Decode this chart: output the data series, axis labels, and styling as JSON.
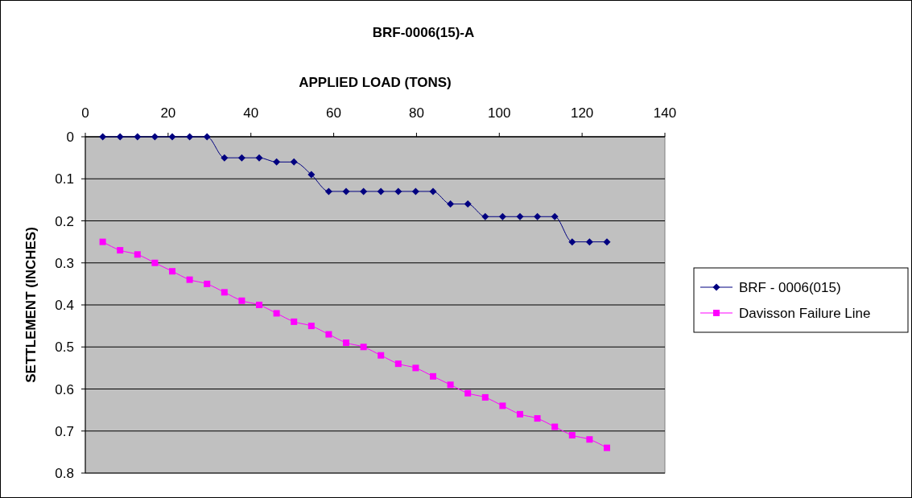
{
  "chart_data": {
    "type": "line",
    "title": "BRF-0006(15)-A",
    "xlabel": "APPLIED LOAD (TONS)",
    "ylabel": "SETTLEMENT (INCHES)",
    "xlim": [
      0,
      140
    ],
    "xticks": [
      0,
      20,
      40,
      60,
      80,
      100,
      120,
      140
    ],
    "ylim": [
      0.8,
      0
    ],
    "yticks": [
      0,
      0.1,
      0.2,
      0.3,
      0.4,
      0.5,
      0.6,
      0.7,
      0.8
    ],
    "grid": "y",
    "legend": "right",
    "x": [
      4.2,
      8.4,
      12.6,
      16.8,
      21,
      25.2,
      29.4,
      33.6,
      37.8,
      42,
      46.2,
      50.4,
      54.6,
      58.8,
      63,
      67.2,
      71.4,
      75.6,
      79.8,
      84,
      88.2,
      92.4,
      96.6,
      100.8,
      105,
      109.2,
      113.4,
      117.6,
      121.8,
      126
    ],
    "series": [
      {
        "name": "BRF - 0006(015)",
        "color": "#000080",
        "marker": "diamond",
        "values": [
          0,
          0,
          0,
          0,
          0,
          0,
          0,
          0.05,
          0.05,
          0.05,
          0.06,
          0.06,
          0.09,
          0.13,
          0.13,
          0.13,
          0.13,
          0.13,
          0.13,
          0.13,
          0.16,
          0.16,
          0.19,
          0.19,
          0.19,
          0.19,
          0.19,
          0.25,
          0.25,
          0.25
        ]
      },
      {
        "name": "Davisson Failure Line",
        "color": "#ff00ff",
        "marker": "square",
        "values": [
          0.25,
          0.27,
          0.28,
          0.3,
          0.32,
          0.34,
          0.35,
          0.37,
          0.39,
          0.4,
          0.42,
          0.44,
          0.45,
          0.47,
          0.49,
          0.5,
          0.52,
          0.54,
          0.55,
          0.57,
          0.59,
          0.61,
          0.62,
          0.64,
          0.66,
          0.67,
          0.69,
          0.71,
          0.72,
          0.74
        ]
      }
    ]
  }
}
